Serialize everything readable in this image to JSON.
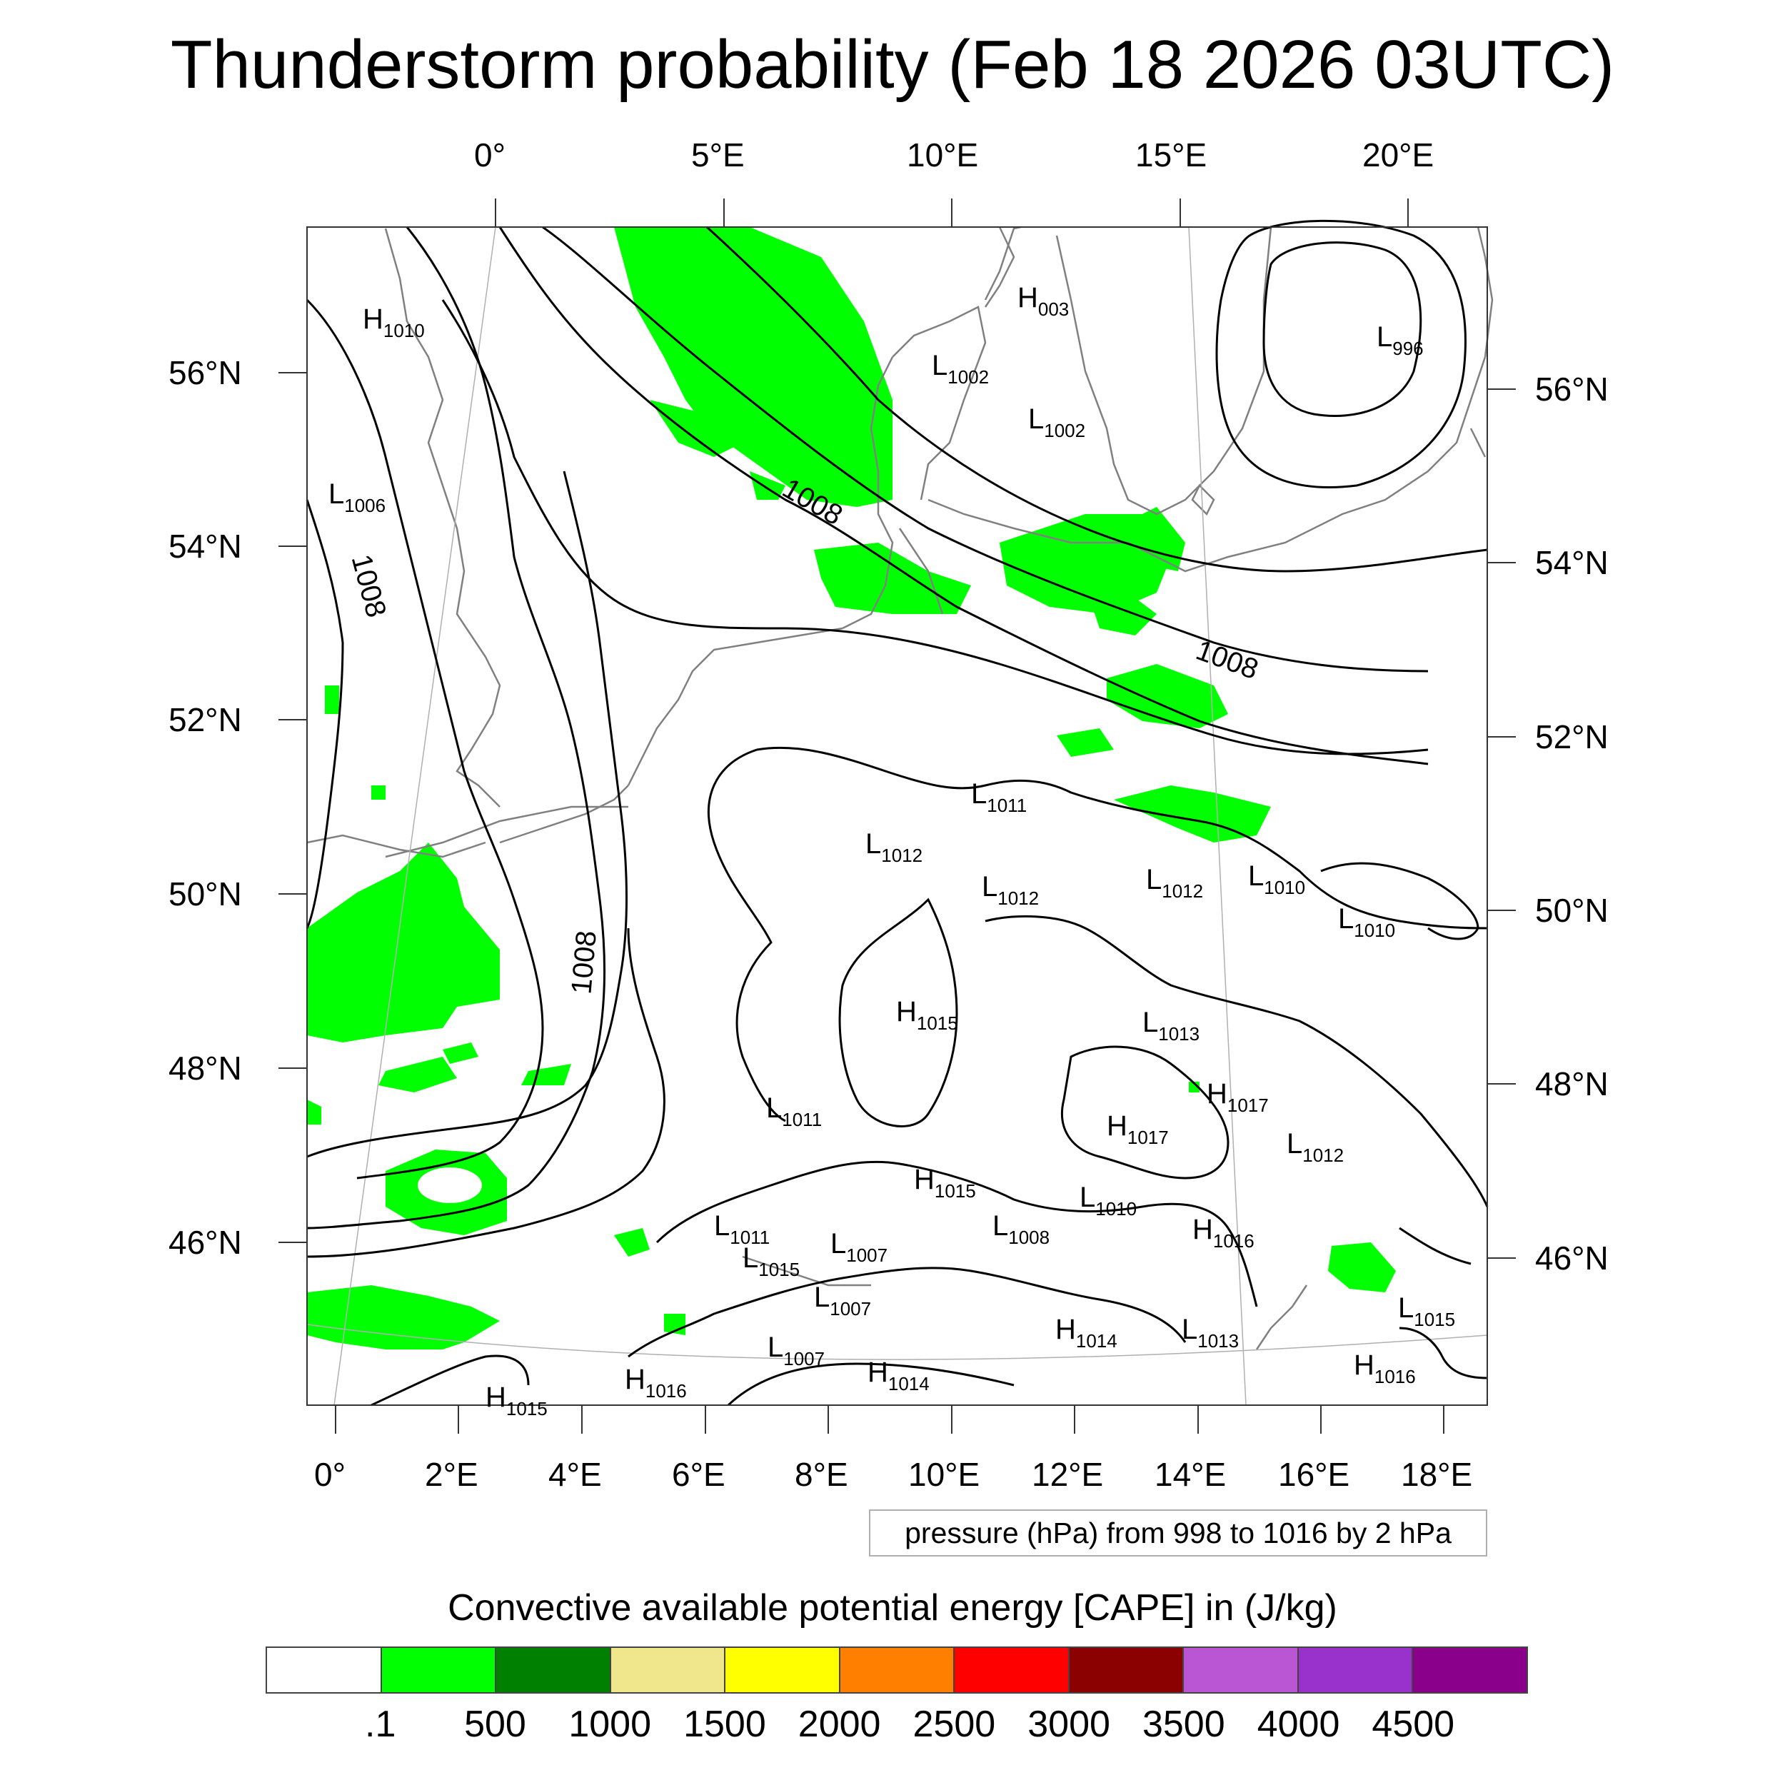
{
  "title": "Thunderstorm probability (Feb 18 2026 03UTC)",
  "top_lon_ticks": [
    "0°",
    "5°E",
    "10°E",
    "15°E",
    "20°E"
  ],
  "bottom_lon_ticks": [
    "0°",
    "2°E",
    "4°E",
    "6°E",
    "8°E",
    "10°E",
    "12°E",
    "14°E",
    "16°E",
    "18°E"
  ],
  "left_lat_ticks": [
    "56°N",
    "54°N",
    "52°N",
    "50°N",
    "48°N",
    "46°N"
  ],
  "right_lat_ticks": [
    "56°N",
    "54°N",
    "52°N",
    "50°N",
    "48°N",
    "46°N"
  ],
  "pressure_note": "pressure (hPa) from 998 to 1016 by 2 hPa",
  "colorbar": {
    "title": "Convective available potential energy [CAPE] in (J/kg)",
    "colors": [
      "#ffffff",
      "#00ff00",
      "#008000",
      "#f0e68c",
      "#ffff00",
      "#ff8000",
      "#ff0000",
      "#8b0000",
      "#ba55d3",
      "#9932cc",
      "#8b008b"
    ],
    "labels": [
      ".1",
      "500",
      "1000",
      "1500",
      "2000",
      "2500",
      "3000",
      "3500",
      "4000",
      "4500"
    ]
  },
  "pressure_centers": [
    {
      "kind": "H",
      "value": "1010"
    },
    {
      "kind": "H",
      "value": "003"
    },
    {
      "kind": "L",
      "value": "1002"
    },
    {
      "kind": "L",
      "value": "1002"
    },
    {
      "kind": "L",
      "value": "996"
    },
    {
      "kind": "L",
      "value": "1006"
    },
    {
      "kind": "L",
      "value": "1011"
    },
    {
      "kind": "L",
      "value": "1012"
    },
    {
      "kind": "L",
      "value": "1012"
    },
    {
      "kind": "L",
      "value": "1012"
    },
    {
      "kind": "L",
      "value": "1010"
    },
    {
      "kind": "L",
      "value": "1010"
    },
    {
      "kind": "H",
      "value": "1015"
    },
    {
      "kind": "L",
      "value": "1013"
    },
    {
      "kind": "H",
      "value": "1017"
    },
    {
      "kind": "L",
      "value": "1011"
    },
    {
      "kind": "H",
      "value": "1017"
    },
    {
      "kind": "L",
      "value": "1012"
    },
    {
      "kind": "H",
      "value": "1015"
    },
    {
      "kind": "L",
      "value": "1010"
    },
    {
      "kind": "L",
      "value": "1011"
    },
    {
      "kind": "L",
      "value": "1008"
    },
    {
      "kind": "H",
      "value": "1016"
    },
    {
      "kind": "L",
      "value": "1015"
    },
    {
      "kind": "L",
      "value": "1007"
    },
    {
      "kind": "L",
      "value": "1007"
    },
    {
      "kind": "L",
      "value": "1007"
    },
    {
      "kind": "H",
      "value": "1014"
    },
    {
      "kind": "L",
      "value": "1013"
    },
    {
      "kind": "H",
      "value": "1014"
    },
    {
      "kind": "H",
      "value": "1016"
    },
    {
      "kind": "H",
      "value": "1016"
    },
    {
      "kind": "H",
      "value": "1015"
    },
    {
      "kind": "L",
      "value": "1015"
    }
  ],
  "contour_labels": [
    "1008",
    "1008",
    "1008",
    "1008"
  ],
  "colors": {
    "cape_low": "#00ff00",
    "isobar": "#000000",
    "coastline": "#808080"
  }
}
